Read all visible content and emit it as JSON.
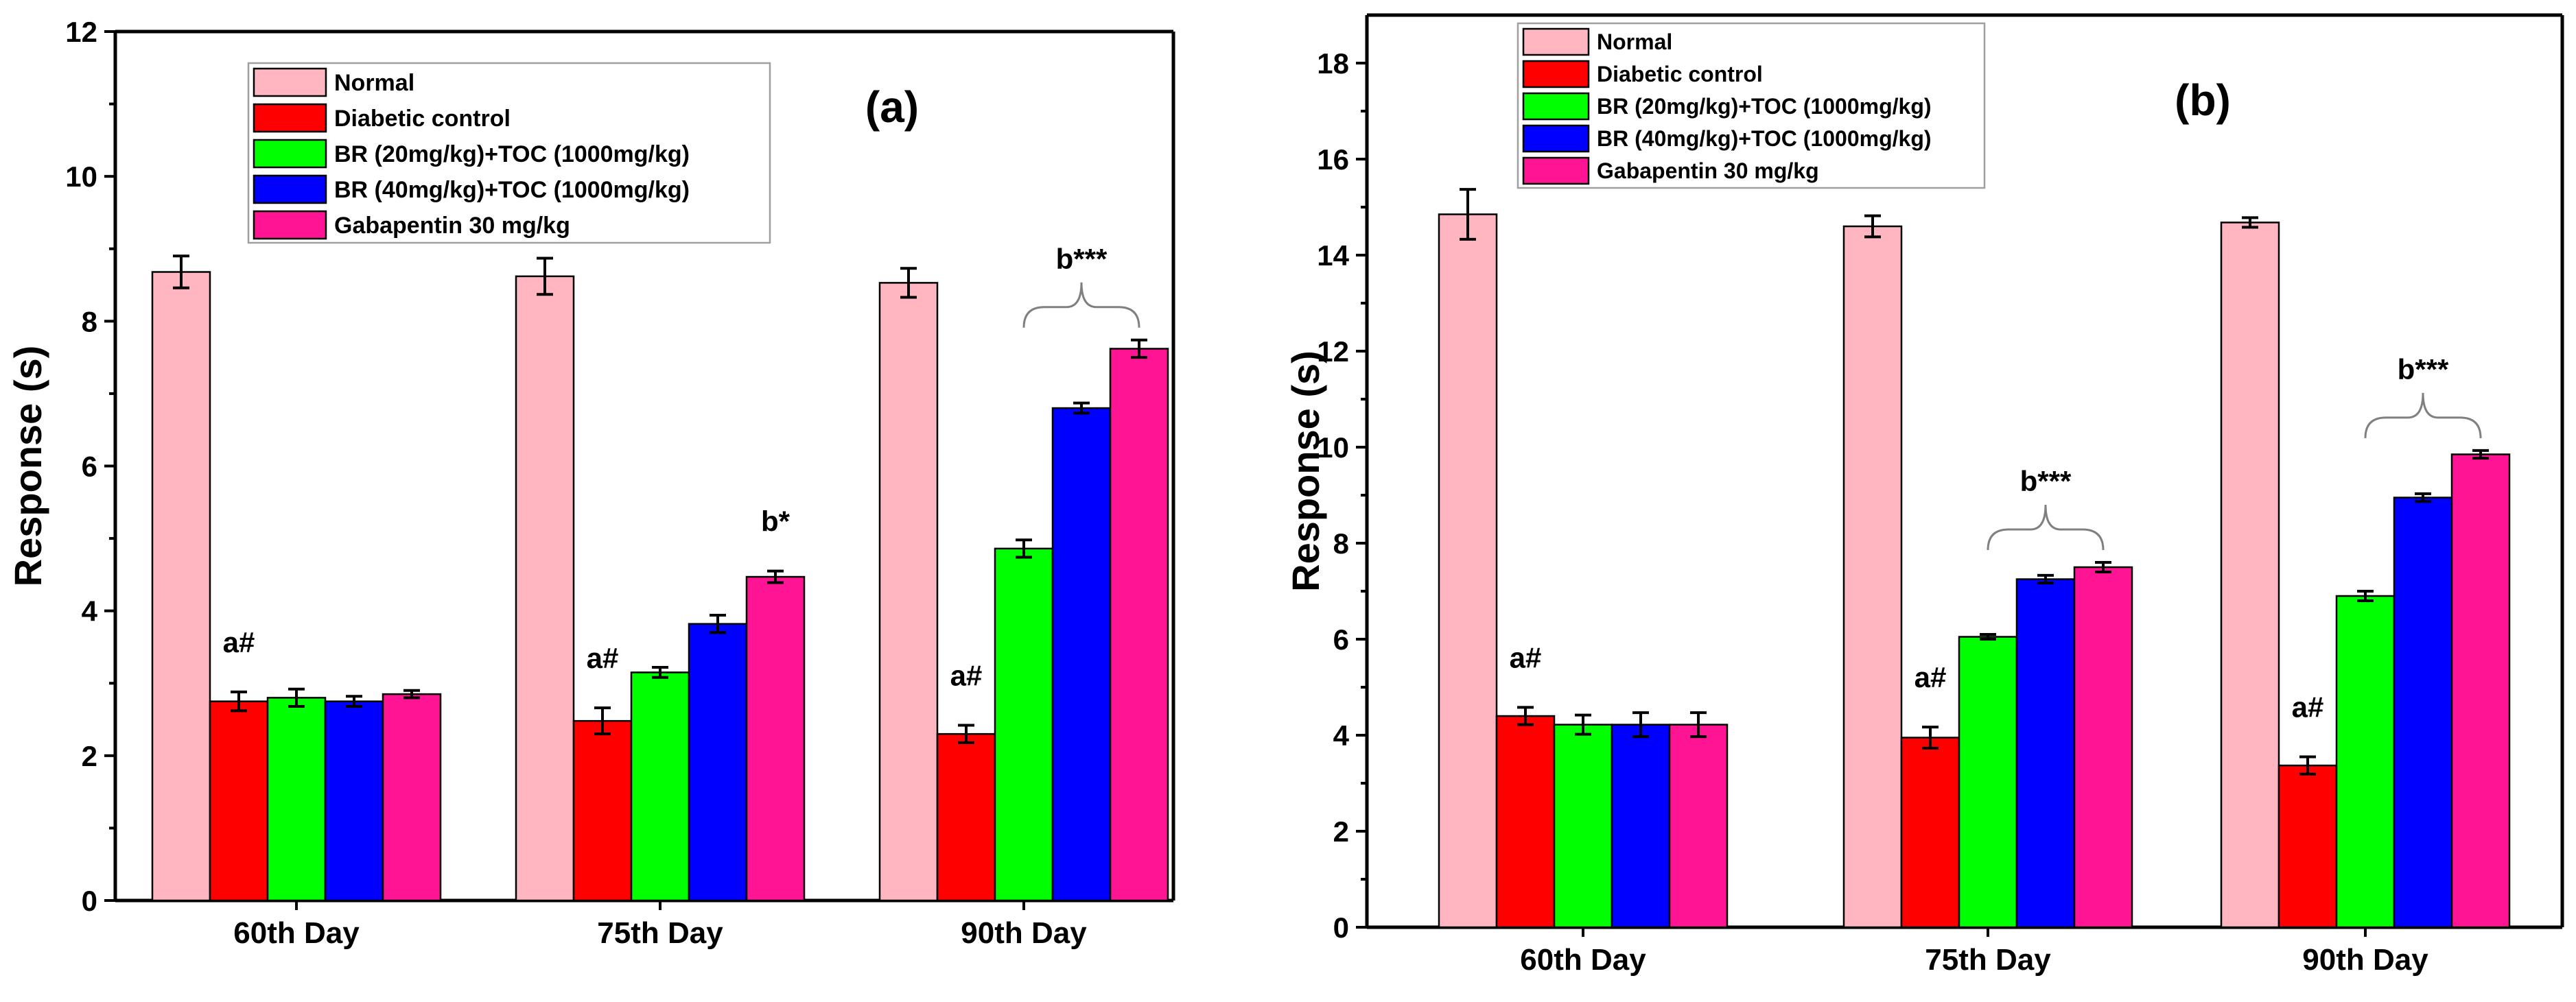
{
  "chart_data": [
    {
      "type": "bar",
      "panel_label": "(a)",
      "ylabel": "Response (s)",
      "xlabel": "",
      "ylim": [
        0,
        12
      ],
      "yticks": [
        0,
        2,
        4,
        6,
        8,
        10,
        12
      ],
      "categories": [
        "60th Day",
        "75th Day",
        "90th Day"
      ],
      "legend_position": "top-left",
      "series": [
        {
          "name": "Normal",
          "color": "#ffb6c1",
          "values": [
            8.68,
            8.62,
            8.53
          ],
          "errors": [
            0.22,
            0.25,
            0.2
          ]
        },
        {
          "name": "Diabetic control",
          "color": "#ff0000",
          "values": [
            2.75,
            2.48,
            2.3
          ],
          "errors": [
            0.13,
            0.18,
            0.12
          ]
        },
        {
          "name": "BR (20mg/kg)+TOC (1000mg/kg)",
          "color": "#00ff00",
          "values": [
            2.8,
            3.15,
            4.86
          ],
          "errors": [
            0.12,
            0.07,
            0.12
          ]
        },
        {
          "name": "BR (40mg/kg)+TOC (1000mg/kg)",
          "color": "#0000ff",
          "values": [
            2.75,
            3.82,
            6.8
          ],
          "errors": [
            0.07,
            0.12,
            0.07
          ]
        },
        {
          "name": "Gabapentin 30 mg/kg",
          "color": "#ff1493",
          "values": [
            2.85,
            4.47,
            7.62
          ],
          "errors": [
            0.05,
            0.08,
            0.12
          ]
        }
      ],
      "annotations": [
        {
          "text": "a#",
          "category": 0,
          "series": 1
        },
        {
          "text": "a#",
          "category": 1,
          "series": 1
        },
        {
          "text": "b*",
          "category": 1,
          "series": 4
        },
        {
          "text": "a#",
          "category": 2,
          "series": 1
        },
        {
          "text": "b***",
          "category": 2,
          "brace_from": 2,
          "brace_to": 4
        }
      ]
    },
    {
      "type": "bar",
      "panel_label": "(b)",
      "ylabel": "Response (s)",
      "xlabel": "",
      "ylim": [
        0,
        19
      ],
      "yticks": [
        0,
        2,
        4,
        6,
        8,
        10,
        12,
        14,
        16,
        18
      ],
      "categories": [
        "60th Day",
        "75th Day",
        "90th Day"
      ],
      "legend_position": "top-left",
      "series": [
        {
          "name": "Normal",
          "color": "#ffb6c1",
          "values": [
            14.85,
            14.6,
            14.68
          ],
          "errors": [
            0.52,
            0.22,
            0.1
          ]
        },
        {
          "name": "Diabetic control",
          "color": "#ff0000",
          "values": [
            4.4,
            3.95,
            3.37
          ],
          "errors": [
            0.18,
            0.22,
            0.18
          ]
        },
        {
          "name": "BR (20mg/kg)+TOC (1000mg/kg)",
          "color": "#00ff00",
          "values": [
            4.22,
            6.05,
            6.9
          ],
          "errors": [
            0.2,
            0.05,
            0.1
          ]
        },
        {
          "name": "BR (40mg/kg)+TOC (1000mg/kg)",
          "color": "#0000ff",
          "values": [
            4.22,
            7.25,
            8.95
          ],
          "errors": [
            0.25,
            0.08,
            0.08
          ]
        },
        {
          "name": "Gabapentin 30 mg/kg",
          "color": "#ff1493",
          "values": [
            4.22,
            7.5,
            9.85
          ],
          "errors": [
            0.25,
            0.1,
            0.08
          ]
        }
      ],
      "annotations": [
        {
          "text": "a#",
          "category": 0,
          "series": 1
        },
        {
          "text": "a#",
          "category": 1,
          "series": 1
        },
        {
          "text": "b***",
          "category": 1,
          "brace_from": 2,
          "brace_to": 4
        },
        {
          "text": "a#",
          "category": 2,
          "series": 1
        },
        {
          "text": "b***",
          "category": 2,
          "brace_from": 2,
          "brace_to": 4
        }
      ]
    }
  ]
}
